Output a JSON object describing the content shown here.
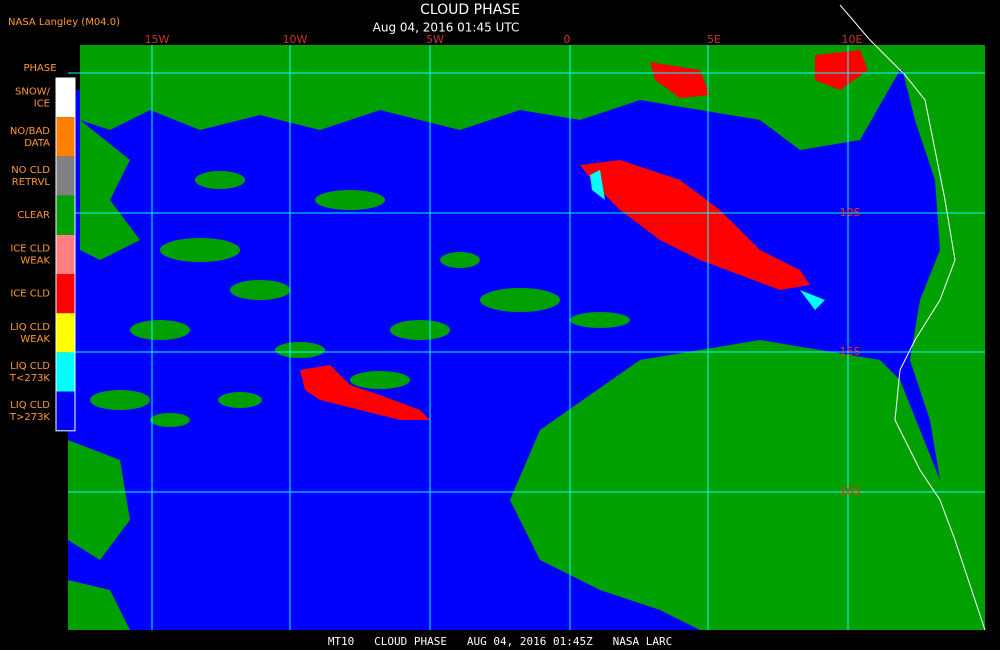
{
  "header": {
    "title": "CLOUD PHASE",
    "subtitle": "Aug 04, 2016 01:45 UTC",
    "source": "NASA Langley (M04.0)"
  },
  "map": {
    "longitude_labels": [
      "15W",
      "10W",
      "5W",
      "0",
      "5E",
      "10E"
    ],
    "latitude_labels": [
      "10S",
      "15S",
      "20S"
    ]
  },
  "legend": {
    "title": "PHASE",
    "items": [
      {
        "lines": [
          "SNOW/",
          "ICE"
        ],
        "color": "#ffffff"
      },
      {
        "lines": [
          "NO/BAD",
          "DATA"
        ],
        "color": "#ff8000"
      },
      {
        "lines": [
          "NO CLD",
          "RETRVL"
        ],
        "color": "#808080"
      },
      {
        "lines": [
          "CLEAR"
        ],
        "color": "#00a000"
      },
      {
        "lines": [
          "ICE CLD",
          "WEAK"
        ],
        "color": "#ff8080"
      },
      {
        "lines": [
          "ICE CLD"
        ],
        "color": "#ff0000"
      },
      {
        "lines": [
          "LIQ CLD",
          "WEAK"
        ],
        "color": "#ffff00"
      },
      {
        "lines": [
          "LIQ CLD",
          "T<273K"
        ],
        "color": "#00ffff"
      },
      {
        "lines": [
          "LIQ CLD",
          "T>273K"
        ],
        "color": "#0000ff"
      }
    ]
  },
  "footer": {
    "text": "MT10   CLOUD PHASE   AUG 04, 2016 01:45Z   NASA LARC"
  }
}
